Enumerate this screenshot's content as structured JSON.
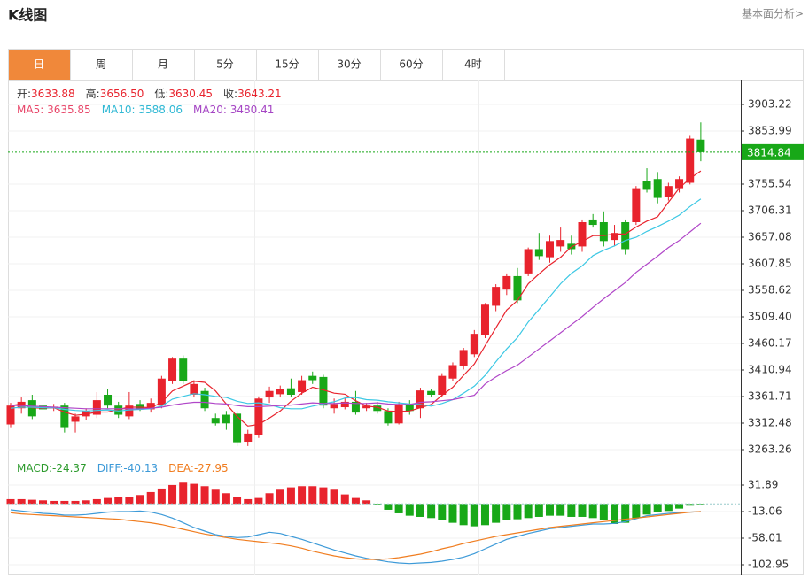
{
  "header": {
    "title": "K线图",
    "link": "基本面分析>"
  },
  "tabs": [
    "日",
    "周",
    "月",
    "5分",
    "15分",
    "30分",
    "60分",
    "4时"
  ],
  "active_tab": 0,
  "info": {
    "row1": [
      {
        "label": "开:",
        "value": "3633.88"
      },
      {
        "label": "高:",
        "value": "3656.50"
      },
      {
        "label": "低:",
        "value": "3630.45"
      },
      {
        "label": "收:",
        "value": "3643.21"
      }
    ],
    "row2": [
      {
        "label": "MA5: ",
        "value": "3635.85",
        "color": "#e8476a"
      },
      {
        "label": "MA10: ",
        "value": "3588.06",
        "color": "#2fb8d4"
      },
      {
        "label": "MA20: ",
        "value": "3480.41",
        "color": "#a545c4"
      }
    ],
    "macd": [
      {
        "label": "MACD:",
        "value": "-24.37",
        "color": "#2c9a2c"
      },
      {
        "label": "DIFF:",
        "value": "-40.13",
        "color": "#3d9ad8"
      },
      {
        "label": "DEA:",
        "value": "-27.95",
        "color": "#f07d20"
      }
    ]
  },
  "chart_data": [
    {
      "type": "candlestick",
      "up_color": "#e8232d",
      "down_color": "#18a818",
      "grid": true,
      "ylim": [
        3246.85,
        3949.2
      ],
      "yticks": [
        3903.22,
        3853.99,
        3755.54,
        3706.31,
        3657.08,
        3607.85,
        3558.62,
        {
          "value": 3509.4,
          "label": "3509.40"
        },
        3460.17,
        3410.94,
        3361.71,
        3312.48,
        3263.26
      ],
      "last_price": 3814.84,
      "last_price_color": "#18a818",
      "open": [
        3310,
        3340,
        3355,
        3345,
        3340,
        3345,
        3315,
        3325,
        3328,
        3365,
        3345,
        3325,
        3348,
        3338,
        3345,
        3390,
        3432,
        3365,
        3372,
        3322,
        3328,
        3330,
        3278,
        3290,
        3360,
        3366,
        3377,
        3370,
        3400,
        3398,
        3340,
        3342,
        3352,
        3340,
        3345,
        3335,
        3312,
        3348,
        3340,
        3372,
        3365,
        3395,
        3418,
        3440,
        3475,
        3530,
        3560,
        3585,
        3590,
        3635,
        3620,
        3640,
        3645,
        3640,
        3690,
        3685,
        3652,
        3685,
        3685,
        3762,
        3765,
        3732,
        3748,
        3758,
        3838
      ],
      "high": [
        3350,
        3360,
        3365,
        3350,
        3348,
        3350,
        3330,
        3340,
        3370,
        3375,
        3352,
        3370,
        3355,
        3358,
        3400,
        3435,
        3438,
        3392,
        3378,
        3330,
        3335,
        3335,
        3300,
        3362,
        3380,
        3382,
        3395,
        3400,
        3408,
        3402,
        3358,
        3360,
        3372,
        3350,
        3352,
        3340,
        3352,
        3355,
        3378,
        3375,
        3405,
        3425,
        3452,
        3485,
        3535,
        3570,
        3590,
        3600,
        3638,
        3665,
        3660,
        3675,
        3660,
        3690,
        3700,
        3705,
        3680,
        3690,
        3752,
        3785,
        3778,
        3758,
        3770,
        3845,
        3870
      ],
      "low": [
        3305,
        3330,
        3320,
        3330,
        3335,
        3295,
        3295,
        3318,
        3322,
        3340,
        3322,
        3320,
        3335,
        3332,
        3340,
        3385,
        3385,
        3360,
        3335,
        3308,
        3300,
        3270,
        3270,
        3285,
        3350,
        3360,
        3360,
        3365,
        3385,
        3340,
        3330,
        3338,
        3328,
        3335,
        3330,
        3308,
        3310,
        3328,
        3322,
        3360,
        3360,
        3390,
        3412,
        3435,
        3470,
        3520,
        3550,
        3535,
        3585,
        3615,
        3610,
        3630,
        3625,
        3630,
        3675,
        3640,
        3640,
        3625,
        3680,
        3740,
        3720,
        3725,
        3740,
        3755,
        3798
      ],
      "close": [
        3345,
        3352,
        3325,
        3338,
        3343,
        3305,
        3325,
        3335,
        3355,
        3345,
        3328,
        3345,
        3338,
        3350,
        3395,
        3432,
        3390,
        3385,
        3340,
        3312,
        3312,
        3277,
        3293,
        3358,
        3372,
        3375,
        3365,
        3392,
        3392,
        3345,
        3348,
        3352,
        3332,
        3345,
        3335,
        3312,
        3348,
        3335,
        3373,
        3365,
        3400,
        3420,
        3448,
        3478,
        3532,
        3565,
        3585,
        3540,
        3635,
        3622,
        3650,
        3652,
        3635,
        3685,
        3680,
        3650,
        3665,
        3635,
        3748,
        3745,
        3730,
        3752,
        3765,
        3840,
        3814.84
      ],
      "series": [
        {
          "name": "MA5",
          "color": "#e8232d",
          "values": [
            3345,
            3348,
            3341,
            3340,
            3341,
            3333,
            3327,
            3329,
            3333,
            3333,
            3338,
            3342,
            3342,
            3341,
            3351,
            3372,
            3381,
            3390,
            3388,
            3372,
            3348,
            3325,
            3307,
            3310,
            3322,
            3335,
            3353,
            3368,
            3379,
            3374,
            3368,
            3366,
            3354,
            3344,
            3342,
            3335,
            3334,
            3335,
            3341,
            3347,
            3364,
            3379,
            3401,
            3422,
            3456,
            3489,
            3522,
            3540,
            3571,
            3589,
            3606,
            3620,
            3639,
            3649,
            3660,
            3660,
            3663,
            3663,
            3676,
            3687,
            3695,
            3722,
            3748,
            3766,
            3780
          ]
        },
        {
          "name": "MA10",
          "color": "#3cc8e4",
          "values": [
            3340,
            3342,
            3342,
            3341,
            3341,
            3338,
            3336,
            3335,
            3336,
            3337,
            3335,
            3337,
            3338,
            3339,
            3344,
            3357,
            3362,
            3367,
            3365,
            3362,
            3360,
            3353,
            3349,
            3350,
            3347,
            3341,
            3339,
            3339,
            3344,
            3348,
            3352,
            3359,
            3360,
            3356,
            3355,
            3352,
            3350,
            3348,
            3347,
            3344,
            3349,
            3356,
            3368,
            3381,
            3401,
            3426,
            3450,
            3471,
            3500,
            3523,
            3547,
            3571,
            3590,
            3604,
            3623,
            3633,
            3641,
            3651,
            3657,
            3668,
            3677,
            3687,
            3698,
            3714,
            3728
          ]
        },
        {
          "name": "MA20",
          "color": "#b046c8",
          "values": [
            3345,
            3345,
            3344,
            3343,
            3342,
            3341,
            3340,
            3339,
            3339,
            3339,
            3339,
            3339,
            3339,
            3340,
            3342,
            3346,
            3349,
            3351,
            3351,
            3349,
            3348,
            3345,
            3343,
            3343,
            3344,
            3345,
            3346,
            3348,
            3350,
            3349,
            3349,
            3350,
            3349,
            3349,
            3350,
            3348,
            3347,
            3347,
            3351,
            3352,
            3354,
            3356,
            3360,
            3364,
            3385,
            3398,
            3410,
            3420,
            3435,
            3450,
            3465,
            3480,
            3495,
            3510,
            3527,
            3543,
            3558,
            3573,
            3592,
            3607,
            3622,
            3638,
            3651,
            3667,
            3683
          ]
        }
      ]
    },
    {
      "type": "macd",
      "up_color": "#e8232d",
      "down_color": "#18a818",
      "grid": true,
      "ylim": [
        -120.93,
        76.84
      ],
      "yticks": [
        31.89,
        -13.06,
        -58.01,
        -102.95
      ],
      "values": [
        8,
        8,
        7,
        6,
        5,
        5,
        5,
        6,
        8,
        10,
        11,
        12,
        15,
        20,
        26,
        32,
        36,
        34,
        30,
        24,
        18,
        12,
        8,
        10,
        18,
        24,
        28,
        30,
        30,
        28,
        24,
        16,
        10,
        6,
        -2,
        -10,
        -16,
        -20,
        -22,
        -24,
        -28,
        -32,
        -36,
        -38,
        -36,
        -32,
        -28,
        -26,
        -24,
        -22,
        -20,
        -20,
        -22,
        -22,
        -24,
        -28,
        -34,
        -32,
        -24,
        -18,
        -14,
        -12,
        -8,
        -3,
        -1
      ],
      "series": [
        {
          "name": "DIFF",
          "color": "#3d9ad8",
          "values": [
            -10,
            -12,
            -14,
            -16,
            -17,
            -19,
            -19,
            -18,
            -16,
            -14,
            -13,
            -13,
            -12,
            -14,
            -18,
            -24,
            -32,
            -40,
            -46,
            -52,
            -55,
            -57,
            -56,
            -52,
            -48,
            -50,
            -55,
            -60,
            -66,
            -72,
            -78,
            -83,
            -88,
            -92,
            -95,
            -98,
            -100,
            -101,
            -100,
            -99,
            -97,
            -94,
            -90,
            -84,
            -76,
            -68,
            -60,
            -55,
            -50,
            -46,
            -42,
            -40,
            -38,
            -36,
            -34,
            -34,
            -33,
            -30,
            -25,
            -20,
            -18,
            -16,
            -15,
            -14,
            -13
          ]
        },
        {
          "name": "DEA",
          "color": "#f07d20",
          "values": [
            -15,
            -17,
            -18,
            -19,
            -20,
            -21,
            -22,
            -23,
            -24,
            -25,
            -26,
            -28,
            -30,
            -32,
            -35,
            -39,
            -43,
            -47,
            -51,
            -54,
            -57,
            -60,
            -62,
            -64,
            -66,
            -68,
            -71,
            -75,
            -80,
            -84,
            -88,
            -91,
            -93,
            -94,
            -94,
            -93,
            -91,
            -88,
            -85,
            -81,
            -76,
            -72,
            -67,
            -63,
            -59,
            -55,
            -52,
            -49,
            -46,
            -43,
            -40,
            -38,
            -36,
            -34,
            -32,
            -30,
            -28,
            -26,
            -24,
            -22,
            -20,
            -18,
            -16,
            -14,
            -13
          ]
        }
      ]
    }
  ]
}
